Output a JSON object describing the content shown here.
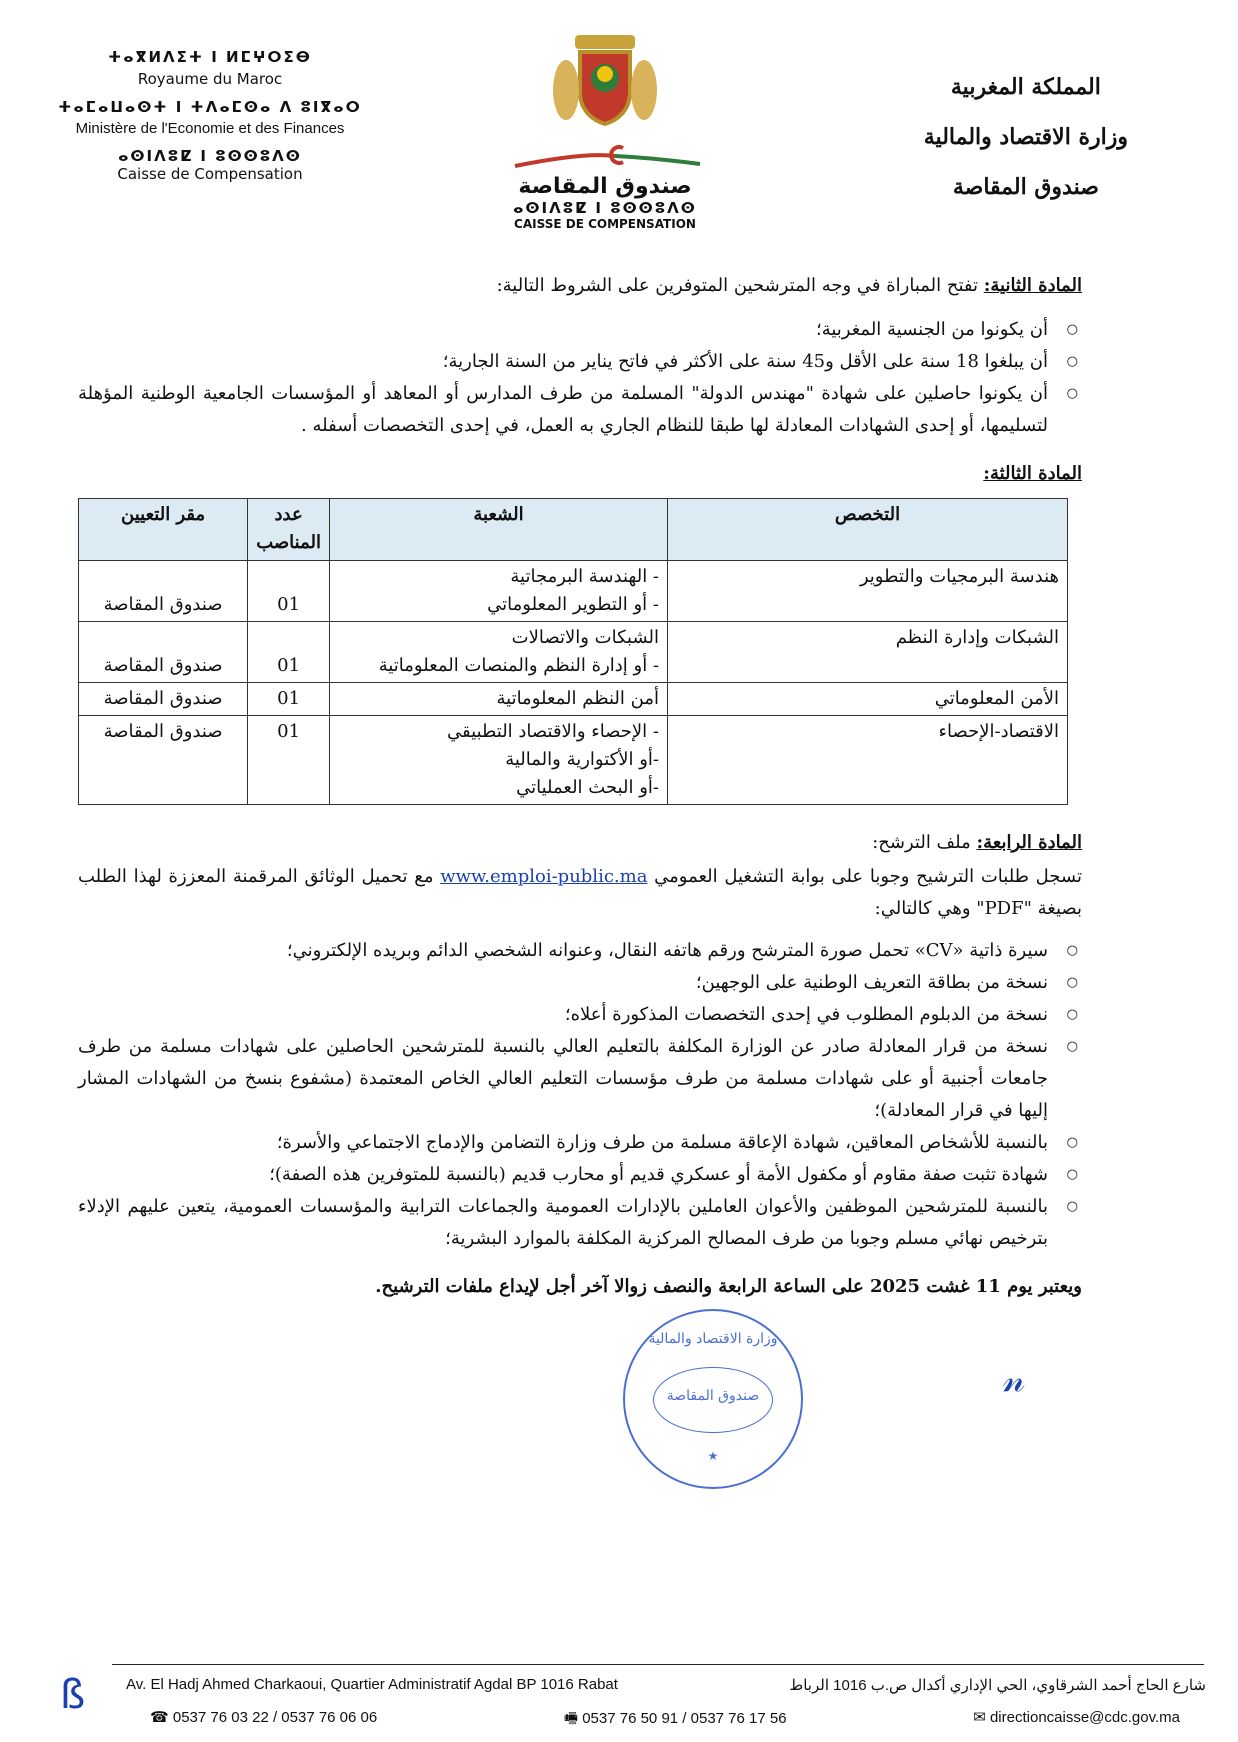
{
  "header": {
    "left": {
      "tifinagh1": "ⵜⴰⴳⵍⴷⵉⵜ ⵏ ⵍⵎⵖⵔⵉⴱ",
      "fr1": "Royaume du Maroc",
      "tifinagh2": "ⵜⴰⵎⴰⵡⴰⵙⵜ ⵏ ⵜⴷⴰⵎⵙⴰ ⴷ ⵓⵏⴳⴰⵔ",
      "fr2": "Ministère de l'Economie et des Finances",
      "tifinagh3": "ⴰⵙⵏⴷⵓⵇ ⵏ ⵓⵙⵙⵓⴷⵙ",
      "fr3": "Caisse de Compensation"
    },
    "logo": {
      "ar": "صندوق المقاصة",
      "tifinagh": "ⴰⵙⵏⴷⵓⵇ ⵏ ⵓⵙⵙⵓⴷⵙ",
      "fr": "CAISSE DE COMPENSATION"
    },
    "right": [
      "المملكة المغربية",
      "وزارة الاقتصاد والمالية",
      "صندوق المقاصة"
    ]
  },
  "article2": {
    "title": "المادة الثانية:",
    "intro": " تفتح المباراة في وجه المترشحين المتوفرين على الشروط التالية:",
    "items": [
      "أن يكونوا من الجنسية المغربية؛",
      "أن يبلغوا 18 سنة على الأقل و45 سنة على الأكثر في فاتح يناير من السنة الجارية؛",
      "أن يكونوا حاصلين على شهادة \"مهندس الدولة\" المسلمة من طرف المدارس أو المعاهد أو المؤسسات الجامعية الوطنية المؤهلة لتسليمها، أو إحدى الشهادات المعادلة لها طبقا للنظام الجاري به العمل، في إحدى التخصصات أسفله ."
    ]
  },
  "article3": {
    "title": "المادة الثالثة:",
    "table": {
      "headers": [
        "التخصص",
        "الشعبة",
        "عدد المناصب",
        "مقر التعيين"
      ],
      "rows": [
        {
          "spec": "هندسة البرمجيات والتطوير",
          "branch": [
            "- الهندسة البرمجاتية",
            "- أو التطوير المعلوماتي"
          ],
          "count": "01",
          "place": "صندوق المقاصة"
        },
        {
          "spec": "الشبكات وإدارة النظم",
          "branch": [
            "الشبكات والاتصالات",
            "- أو إدارة النظم والمنصات المعلوماتية"
          ],
          "count": "01",
          "place": "صندوق المقاصة"
        },
        {
          "spec": "الأمن المعلوماتي",
          "branch": [
            "أمن النظم المعلوماتية"
          ],
          "count": "01",
          "place": "صندوق المقاصة"
        },
        {
          "spec": "الاقتصاد-الإحصاء",
          "branch": [
            "- الإحصاء والاقتصاد التطبيقي",
            "-أو الأكتوارية والمالية",
            "-أو البحث العملياتي"
          ],
          "count": "01",
          "place": "صندوق المقاصة"
        }
      ]
    }
  },
  "article4": {
    "title": "المادة الرابعة:",
    "intro": " ملف الترشح:",
    "p_before": "تسجل طلبات الترشيح وجوبا على بوابة التشغيل العمومي ",
    "link": "www.emploi-public.ma",
    "p_after": " مع تحميل الوثائق المرقمنة المعززة لهذا الطلب بصيغة \"PDF\" وهي كالتالي:",
    "items": [
      "سيرة ذاتية «CV» تحمل صورة المترشح ورقم هاتفه النقال، وعنوانه الشخصي الدائم وبريده الإلكتروني؛",
      "نسخة من بطاقة التعريف الوطنية على الوجهين؛",
      "نسخة من الدبلوم المطلوب في إحدى التخصصات المذكورة أعلاه؛",
      "نسخة من قرار المعادلة صادر عن الوزارة المكلفة بالتعليم العالي بالنسبة للمترشحين الحاصلين على شهادات مسلمة من طرف جامعات أجنبية أو على شهادات مسلمة من طرف مؤسسات التعليم العالي الخاص المعتمدة (مشفوع بنسخ من الشهادات المشار إليها في قرار المعادلة)؛",
      "بالنسبة للأشخاص المعاقين، شهادة الإعاقة مسلمة من طرف وزارة التضامن والإدماج الاجتماعي والأسرة؛",
      "شهادة تثبت صفة مقاوم أو مكفول الأمة أو عسكري قديم أو محارب قديم (بالنسبة للمتوفرين هذه الصفة)؛",
      "بالنسبة للمترشحين الموظفين والأعوان العاملين بالإدارات العمومية والجماعات الترابية والمؤسسات العمومية، يتعين عليهم الإدلاء بترخيص نهائي مسلم وجوبا من طرف المصالح المركزية المكلفة بالموارد البشرية؛"
    ],
    "deadline": "ويعتبر يوم 11 غشت 2025 على الساعة الرابعة والنصف زوالا آخر أجل لإيداع ملفات الترشيح."
  },
  "stamp": {
    "outer": "وزارة الاقتصاد والمالية",
    "inner": "صندوق المقاصة"
  },
  "footer": {
    "address_fr": "Av. El Hadj Ahmed Charkaoui, Quartier Administratif Agdal BP 1016 Rabat",
    "address_ar": "شارع الحاج أحمد الشرقاوي، الحي الإداري أكدال ص.ب 1016 الرباط",
    "phone": "0537 76 03 22 / 0537 76 06 06",
    "fax": "0537 76 50 91 / 0537 76 17 56",
    "email": "directioncaisse@cdc.gov.ma"
  },
  "colors": {
    "link": "#1a3fb0",
    "table_header": "#dbeaf3",
    "ink_marks": "#1a3fb0"
  }
}
